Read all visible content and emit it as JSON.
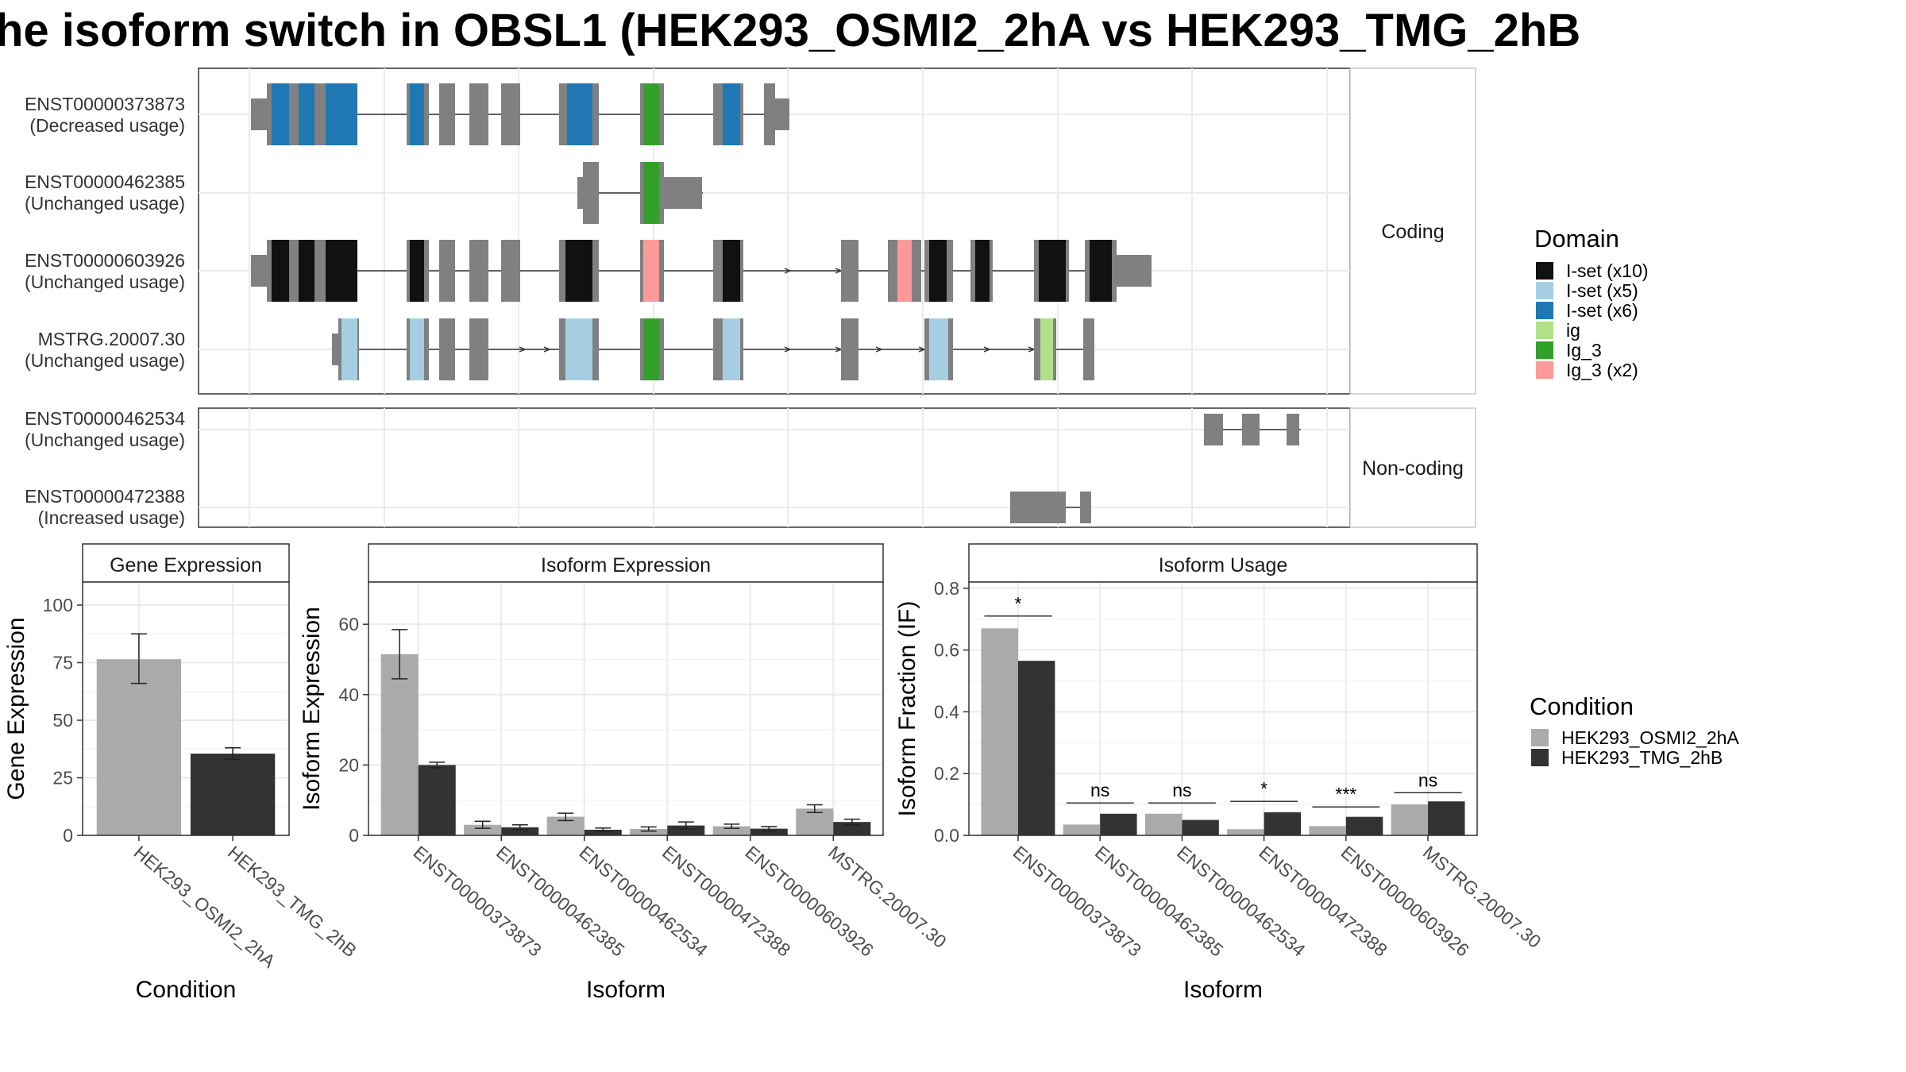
{
  "title": "he isoform switch in OBSL1 (HEK293_OSMI2_2hA vs HEK293_TMG_2hB",
  "structure_panel": {
    "coding_strip": "Coding",
    "noncoding_strip": "Non-coding",
    "coding_isoforms": [
      {
        "id": "ENST00000373873",
        "usage": "(Decreased usage)"
      },
      {
        "id": "ENST00000462385",
        "usage": "(Unchanged usage)"
      },
      {
        "id": "ENST00000603926",
        "usage": "(Unchanged usage)"
      },
      {
        "id": "MSTRG.20007.30",
        "usage": "(Unchanged usage)"
      }
    ],
    "noncoding_isoforms": [
      {
        "id": "ENST00000462534",
        "usage": "(Unchanged usage)"
      },
      {
        "id": "ENST00000472388",
        "usage": "(Increased usage)"
      }
    ]
  },
  "domain_legend": {
    "title": "Domain",
    "items": [
      {
        "label": "I-set (x10)",
        "color": "#111111"
      },
      {
        "label": "I-set (x5)",
        "color": "#a6cee3"
      },
      {
        "label": "I-set (x6)",
        "color": "#1f78b4"
      },
      {
        "label": "ig",
        "color": "#b2df8a"
      },
      {
        "label": "Ig_3",
        "color": "#33a02c"
      },
      {
        "label": "Ig_3 (x2)",
        "color": "#fb9a99"
      }
    ]
  },
  "condition_legend": {
    "title": "Condition",
    "items": [
      {
        "label": "HEK293_OSMI2_2hA",
        "color": "#aaaaaa"
      },
      {
        "label": "HEK293_TMG_2hB",
        "color": "#333333"
      }
    ]
  },
  "chart_data": [
    {
      "type": "bar",
      "strip_title": "Gene Expression",
      "xlabel": "Condition",
      "ylabel": "Gene Expression",
      "categories": [
        "HEK293_OSMI2_2hA",
        "HEK293_TMG_2hB"
      ],
      "values": [
        76.5,
        35.5
      ],
      "errors": [
        [
          66,
          87.5
        ],
        [
          33,
          38
        ]
      ],
      "colors": [
        "#aaaaaa",
        "#333333"
      ],
      "ylim": [
        0,
        110
      ],
      "yticks": [
        0,
        25,
        50,
        75,
        100
      ]
    },
    {
      "type": "bar",
      "strip_title": "Isoform Expression",
      "xlabel": "Isoform",
      "ylabel": "Isoform Expression",
      "categories": [
        "ENST00000373873",
        "ENST00000462385",
        "ENST00000462534",
        "ENST00000472388",
        "ENST00000603926",
        "MSTRG.20007.30"
      ],
      "series": [
        {
          "name": "HEK293_OSMI2_2hA",
          "values": [
            51.5,
            3,
            5.3,
            1.8,
            2.6,
            7.6
          ],
          "errors": [
            [
              44.5,
              58.5
            ],
            [
              2,
              4
            ],
            [
              4.2,
              6.3
            ],
            [
              1.2,
              2.4
            ],
            [
              2,
              3.2
            ],
            [
              6.5,
              8.7
            ]
          ]
        },
        {
          "name": "HEK293_TMG_2hB",
          "values": [
            20,
            2.3,
            1.6,
            2.8,
            1.9,
            3.8
          ],
          "errors": [
            [
              19.2,
              20.8
            ],
            [
              1.6,
              3
            ],
            [
              1.1,
              2.1
            ],
            [
              1.8,
              3.8
            ],
            [
              1.3,
              2.5
            ],
            [
              3,
              4.6
            ]
          ]
        }
      ],
      "ylim": [
        0,
        72
      ],
      "yticks": [
        0,
        20,
        40,
        60
      ]
    },
    {
      "type": "bar",
      "strip_title": "Isoform Usage",
      "xlabel": "Isoform",
      "ylabel": "Isoform Fraction (IF)",
      "categories": [
        "ENST00000373873",
        "ENST00000462385",
        "ENST00000462534",
        "ENST00000472388",
        "ENST00000603926",
        "MSTRG.20007.30"
      ],
      "series": [
        {
          "name": "HEK293_OSMI2_2hA",
          "values": [
            0.67,
            0.035,
            0.07,
            0.02,
            0.03,
            0.1
          ]
        },
        {
          "name": "HEK293_TMG_2hB",
          "values": [
            0.565,
            0.07,
            0.05,
            0.075,
            0.06,
            0.11
          ]
        }
      ],
      "significance": [
        "*",
        "ns",
        "ns",
        "*",
        "***",
        "ns"
      ],
      "sig_heights": [
        0.71,
        0.105,
        0.105,
        0.11,
        0.092,
        0.138
      ],
      "ylim": [
        0,
        0.82
      ],
      "yticks": [
        0.0,
        0.2,
        0.4,
        0.6,
        0.8
      ],
      "ytick_labels": [
        "0.0",
        "0.2",
        "0.4",
        "0.6",
        "0.8"
      ]
    }
  ]
}
